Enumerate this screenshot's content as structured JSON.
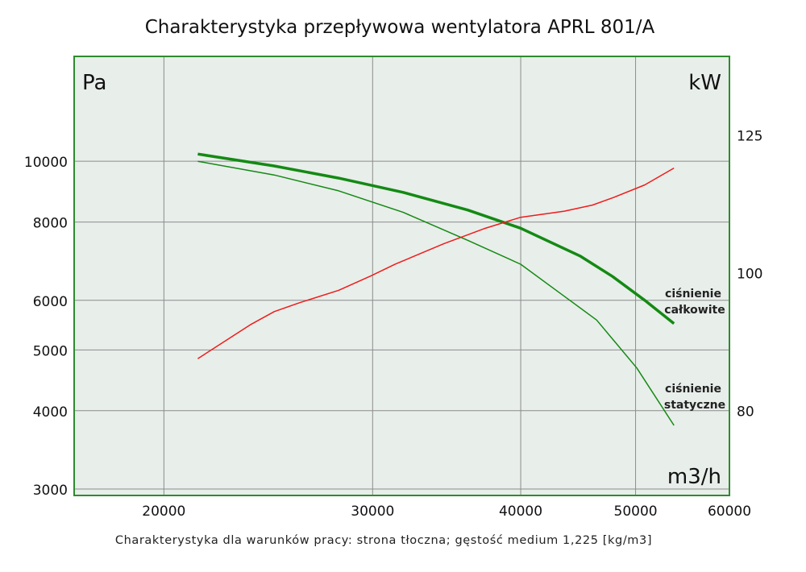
{
  "chart_data": {
    "type": "line",
    "title": "Charakterystyka przepływowa wentylatora APRL 801/A",
    "footnote": "Charakterystyka dla warunków pracy: strona tłoczna; gęstość medium 1,225 [kg/m3]",
    "xlabel": "m3/h",
    "ylabel_left": "Pa",
    "ylabel_right": "kW",
    "xscale": "log",
    "yscale_left": "log",
    "yscale_right": "log",
    "xlim": [
      16800,
      60000
    ],
    "ylim_left": [
      2930,
      14700
    ],
    "ylim_right": [
      69.7,
      142
    ],
    "x_ticks": [
      "20000",
      "30000",
      "40000",
      "50000",
      "60000"
    ],
    "y_ticks_left": [
      "3000",
      "4000",
      "5000",
      "6000",
      "8000",
      "10000"
    ],
    "y_ticks_right": [
      "80",
      "100",
      "125"
    ],
    "grid": true,
    "colors": {
      "background": "#e8eeea",
      "border": "#2e8b2e",
      "pressure": "#138a13",
      "power": "#ee1c1c",
      "grid": "#8c8c8c"
    },
    "series": [
      {
        "name": "ciśnienie całkowite",
        "axis": "left",
        "color": "#138a13",
        "width": "thick",
        "x": [
          21360,
          24780,
          28090,
          31840,
          36090,
          40000,
          44930,
          47810,
          50900,
          53870
        ],
        "y": [
          10270,
          9830,
          9400,
          8920,
          8360,
          7820,
          7055,
          6550,
          6000,
          5510
        ]
      },
      {
        "name": "ciśnienie statyczne",
        "axis": "left",
        "color": "#138a13",
        "width": "thin",
        "x": [
          21360,
          24780,
          28090,
          31840,
          36090,
          40000,
          43540,
          46360,
          50120,
          53870
        ],
        "y": [
          10000,
          9510,
          8970,
          8290,
          7480,
          6850,
          6090,
          5580,
          4680,
          3790
        ]
      },
      {
        "axis": "right",
        "color": "#ee1c1c",
        "width": "thin",
        "x": [
          21360,
          23650,
          24780,
          25980,
          28090,
          29900,
          31340,
          34440,
          37240,
          40000,
          43540,
          46000,
          47810,
          50900,
          53870
        ],
        "y": [
          87.0,
          91.9,
          93.9,
          95.2,
          97.2,
          99.5,
          101.4,
          104.8,
          107.4,
          109.4,
          110.5,
          111.6,
          112.9,
          115.3,
          118.5
        ]
      }
    ],
    "annotations": [
      {
        "text_lines": [
          "ciśnienie",
          "całkowite"
        ]
      },
      {
        "text_lines": [
          "ciśnienie",
          "statyczne"
        ]
      }
    ]
  }
}
